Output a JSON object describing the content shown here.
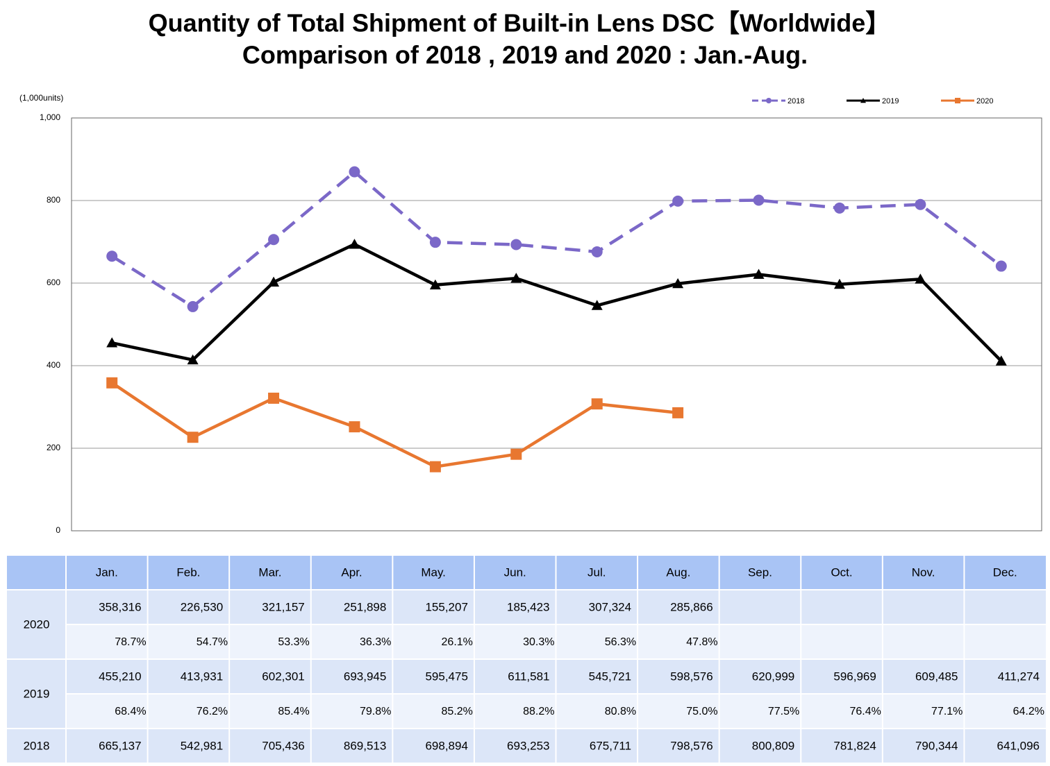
{
  "chart_data": {
    "type": "line",
    "title": "Quantity of Total Shipment of Built-in Lens DSC【Worldwide】",
    "subtitle": "Comparison of 2018 , 2019 and 2020 : Jan.-Aug.",
    "y_label": "(1,000units)",
    "categories": [
      "Jan.",
      "Feb.",
      "Mar.",
      "Apr.",
      "May.",
      "Jun.",
      "Jul.",
      "Aug.",
      "Sep.",
      "Oct.",
      "Nov.",
      "Dec."
    ],
    "ylim": [
      0,
      1000
    ],
    "yticks": [
      0,
      200,
      400,
      600,
      800,
      {
        "value": 1000,
        "label": "1,000"
      }
    ],
    "grid": true,
    "legend": "top-right",
    "series": [
      {
        "name": "2018",
        "color": "#7b68c8",
        "dashed": true,
        "marker": "circle",
        "values": [
          665.137,
          542.981,
          705.436,
          869.513,
          698.894,
          693.253,
          675.711,
          798.576,
          800.809,
          781.824,
          790.344,
          641.096
        ],
        "value_labels": [
          "665,137",
          "542,981",
          "705,436",
          "869,513",
          "698,894",
          "693,253",
          "675,711",
          "798,576",
          "800,809",
          "781,824",
          "790,344",
          "641,096"
        ]
      },
      {
        "name": "2019",
        "color": "#000000",
        "dashed": false,
        "marker": "triangle",
        "values": [
          455.21,
          413.931,
          602.301,
          693.945,
          595.475,
          611.581,
          545.721,
          598.576,
          620.999,
          596.969,
          609.485,
          411.274
        ],
        "value_labels": [
          "455,210",
          "413,931",
          "602,301",
          "693,945",
          "595,475",
          "611,581",
          "545,721",
          "598,576",
          "620,999",
          "596,969",
          "609,485",
          "411,274"
        ],
        "ratio_labels": [
          "68.4%",
          "76.2%",
          "85.4%",
          "79.8%",
          "85.2%",
          "88.2%",
          "80.8%",
          "75.0%",
          "77.5%",
          "76.4%",
          "77.1%",
          "64.2%"
        ]
      },
      {
        "name": "2020",
        "color": "#e87730",
        "dashed": false,
        "marker": "square",
        "values": [
          358.316,
          226.53,
          321.157,
          251.898,
          155.207,
          185.423,
          307.324,
          285.866,
          null,
          null,
          null,
          null
        ],
        "value_labels": [
          "358,316",
          "226,530",
          "321,157",
          "251,898",
          "155,207",
          "185,423",
          "307,324",
          "285,866",
          null,
          null,
          null,
          null
        ],
        "ratio_labels": [
          "78.7%",
          "54.7%",
          "53.3%",
          "36.3%",
          "26.1%",
          "30.3%",
          "56.3%",
          "47.8%",
          null,
          null,
          null,
          null
        ]
      }
    ]
  }
}
